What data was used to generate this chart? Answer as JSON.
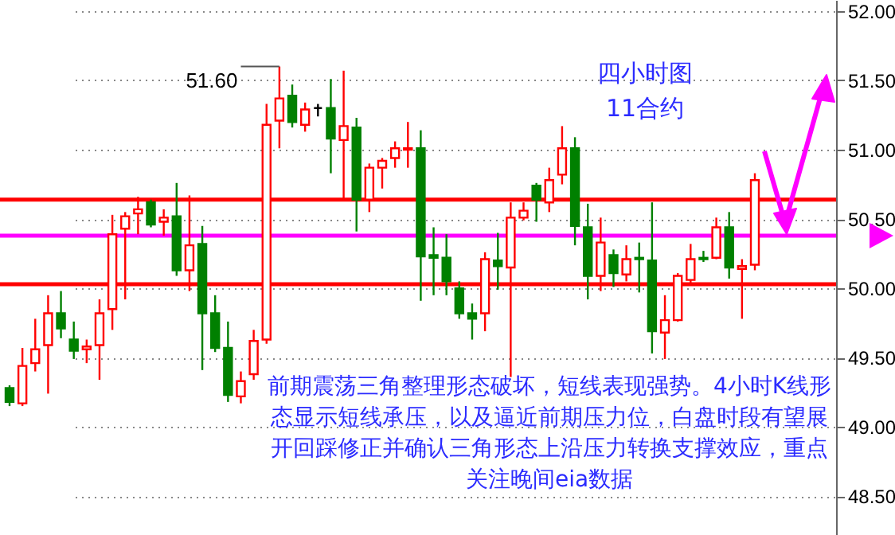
{
  "chart_data": {
    "type": "candlestick",
    "title": "四小时图",
    "subtitle": "11合约",
    "annotations": [
      "51.60",
      "前期震荡三角整理形态破坏，短线表现强势。4小时K线形态显示短线承压，以及逼近前期压力位，白盘时段有望展开回踩修正并确认三角形态上沿压力转换支撑效应，重点关注晚间eia数据"
    ],
    "categories": [
      null,
      null,
      null,
      null,
      null,
      null,
      null,
      null,
      null,
      null,
      null,
      null,
      null,
      null,
      null,
      null,
      null,
      null,
      null,
      null,
      null,
      null,
      null,
      null,
      null,
      null,
      null,
      null,
      null,
      null,
      null,
      null,
      null,
      null,
      null,
      null,
      null,
      null,
      null,
      null,
      null,
      null,
      null,
      null,
      null,
      null,
      null,
      null,
      null,
      null,
      null,
      null,
      null,
      null,
      null,
      null,
      null,
      null,
      null
    ],
    "ohlc": [
      [
        49.28,
        49.3,
        49.15,
        49.18
      ],
      [
        49.17,
        49.57,
        49.15,
        49.44
      ],
      [
        49.46,
        49.78,
        49.4,
        49.56
      ],
      [
        49.59,
        49.95,
        49.24,
        49.82
      ],
      [
        49.82,
        49.98,
        49.64,
        49.71
      ],
      [
        49.63,
        49.76,
        49.49,
        49.55
      ],
      [
        49.56,
        49.63,
        49.46,
        49.58
      ],
      [
        49.59,
        49.92,
        49.34,
        49.82
      ],
      [
        49.85,
        50.53,
        49.7,
        50.39
      ],
      [
        50.43,
        50.55,
        49.92,
        50.52
      ],
      [
        50.54,
        50.66,
        50.39,
        50.57
      ],
      [
        50.62,
        50.64,
        50.44,
        50.46
      ],
      [
        50.48,
        50.57,
        50.38,
        50.51
      ],
      [
        50.52,
        50.76,
        50.09,
        50.13
      ],
      [
        50.13,
        50.67,
        49.98,
        50.31
      ],
      [
        50.32,
        50.45,
        49.41,
        49.82
      ],
      [
        49.82,
        49.95,
        49.54,
        49.57
      ],
      [
        49.57,
        49.76,
        49.18,
        49.23
      ],
      [
        49.22,
        49.4,
        49.17,
        49.33
      ],
      [
        49.38,
        49.7,
        49.34,
        49.62
      ],
      [
        49.63,
        51.33,
        49.6,
        51.18
      ],
      [
        51.21,
        51.6,
        51.01,
        51.37
      ],
      [
        51.39,
        51.47,
        51.16,
        51.2
      ],
      [
        51.18,
        51.34,
        51.13,
        51.29
      ],
      [
        51.3,
        51.33,
        51.24,
        51.3
      ],
      [
        51.3,
        51.51,
        50.83,
        51.08
      ],
      [
        51.07,
        51.57,
        50.64,
        51.17
      ],
      [
        51.16,
        51.23,
        50.41,
        50.64
      ],
      [
        50.64,
        50.9,
        50.55,
        50.87
      ],
      [
        50.87,
        50.94,
        50.72,
        50.92
      ],
      [
        50.94,
        51.06,
        50.87,
        51.01
      ],
      [
        51.0,
        51.2,
        50.87,
        51.01
      ],
      [
        51.01,
        51.14,
        49.91,
        50.23
      ],
      [
        50.24,
        50.44,
        49.95,
        50.22
      ],
      [
        50.22,
        50.39,
        49.95,
        50.05
      ],
      [
        50.0,
        50.05,
        49.78,
        49.82
      ],
      [
        49.82,
        49.89,
        49.63,
        49.78
      ],
      [
        49.82,
        50.26,
        49.69,
        50.21
      ],
      [
        50.2,
        50.4,
        49.99,
        50.16
      ],
      [
        50.15,
        50.62,
        49.36,
        50.51
      ],
      [
        50.51,
        50.62,
        50.49,
        50.56
      ],
      [
        50.74,
        50.76,
        50.48,
        50.64
      ],
      [
        50.62,
        50.87,
        50.55,
        50.78
      ],
      [
        50.82,
        51.17,
        50.75,
        51.01
      ],
      [
        51.01,
        51.09,
        50.31,
        50.45
      ],
      [
        50.44,
        50.61,
        49.92,
        50.09
      ],
      [
        50.09,
        50.51,
        49.98,
        50.33
      ],
      [
        50.24,
        50.28,
        50.01,
        50.11
      ],
      [
        50.1,
        50.31,
        50.05,
        50.21
      ],
      [
        50.22,
        50.33,
        49.97,
        50.21
      ],
      [
        50.2,
        50.62,
        49.53,
        49.69
      ],
      [
        49.68,
        49.95,
        49.49,
        49.77
      ],
      [
        49.77,
        50.11,
        49.76,
        50.09
      ],
      [
        50.06,
        50.32,
        50.03,
        50.21
      ],
      [
        50.22,
        50.27,
        50.19,
        50.21
      ],
      [
        50.22,
        50.51,
        50.21,
        50.44
      ],
      [
        50.44,
        50.55,
        50.07,
        50.15
      ],
      [
        50.14,
        50.21,
        49.78,
        50.16
      ],
      [
        50.17,
        50.83,
        50.13,
        50.78
      ]
    ],
    "colors": [
      "#008000",
      "#ff0000",
      "#ff0000",
      "#ff0000",
      "#008000",
      "#008000",
      "#ff0000",
      "#ff0000",
      "#ff0000",
      "#ff0000",
      "#ff0000",
      "#008000",
      "#ff0000",
      "#008000",
      "#ff0000",
      "#008000",
      "#008000",
      "#008000",
      "#ff0000",
      "#ff0000",
      "#ff0000",
      "#ff0000",
      "#008000",
      "#ff0000",
      "#000000",
      "#008000",
      "#ff0000",
      "#008000",
      "#ff0000",
      "#ff0000",
      "#ff0000",
      "#ff0000",
      "#008000",
      "#008000",
      "#008000",
      "#008000",
      "#008000",
      "#ff0000",
      "#008000",
      "#ff0000",
      "#ff0000",
      "#008000",
      "#ff0000",
      "#ff0000",
      "#008000",
      "#008000",
      "#ff0000",
      "#008000",
      "#ff0000",
      "#008000",
      "#008000",
      "#ff0000",
      "#ff0000",
      "#ff0000",
      "#008000",
      "#ff0000",
      "#008000",
      "#ff0000",
      "#ff0000"
    ],
    "ylim": [
      48.22,
      52.08
    ],
    "yticks": [
      {
        "value": 48.5,
        "label": "48.50"
      },
      {
        "value": 49,
        "label": "49.00"
      },
      {
        "value": 49.5,
        "label": "49.50"
      },
      {
        "value": 50,
        "label": "50.00"
      },
      {
        "value": 50.5,
        "label": "50.50"
      },
      {
        "value": 51,
        "label": "51.00"
      },
      {
        "value": 51.5,
        "label": "51.50"
      },
      {
        "value": 52,
        "label": "52.00"
      }
    ],
    "ref_lines": [
      {
        "axis": "y",
        "value": 50.64,
        "color": "#ff0000"
      },
      {
        "axis": "y",
        "value": 50.03,
        "color": "#ff0000"
      },
      {
        "axis": "y",
        "value": 50.38,
        "color": "#ff00ff"
      }
    ],
    "grid": "y",
    "tick_labels": "y"
  }
}
